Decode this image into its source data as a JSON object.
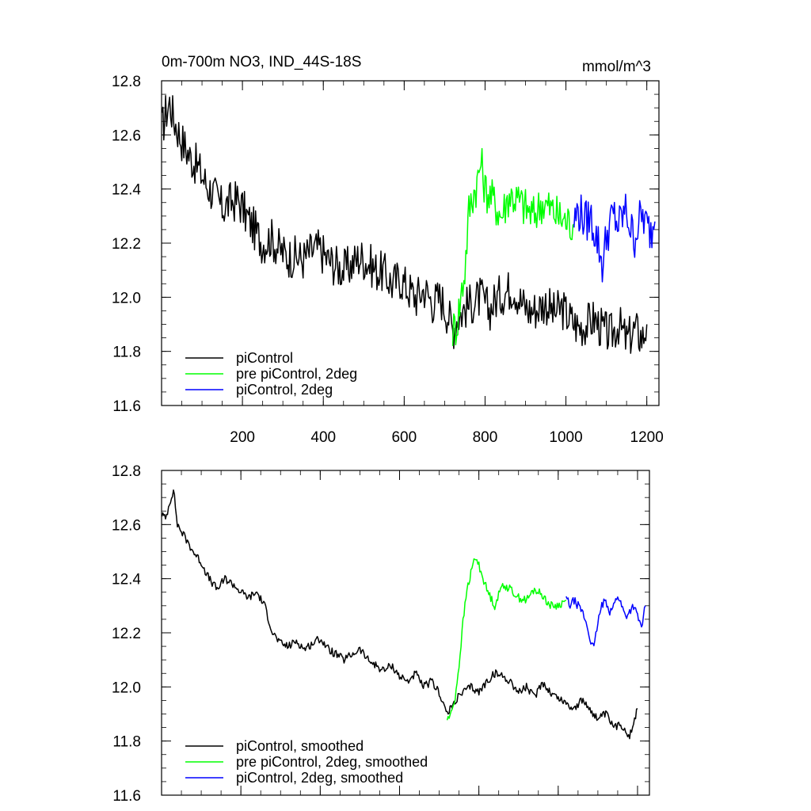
{
  "chart_data": [
    {
      "type": "line",
      "title": "0m-700m NO3, IND_44S-18S",
      "units": "mmol/m^3",
      "xlabel": "",
      "ylabel": "",
      "xlim": [
        0,
        1230
      ],
      "ylim": [
        11.6,
        12.8
      ],
      "x_ticks": [
        200,
        400,
        600,
        800,
        1000,
        1200
      ],
      "x_tick_labels": [
        "200",
        "400",
        "600",
        "800",
        "1000",
        "1200"
      ],
      "y_ticks": [
        11.6,
        11.8,
        12.0,
        12.2,
        12.4,
        12.6,
        12.8
      ],
      "y_tick_labels": [
        "11.6",
        "11.8",
        "12.0",
        "12.2",
        "12.4",
        "12.6",
        "12.8"
      ],
      "grid": false,
      "legend_position": "bottom-left",
      "series": [
        {
          "name": "piControl",
          "color": "#000000",
          "x": [
            1,
            10,
            20,
            30,
            50,
            70,
            90,
            110,
            130,
            150,
            170,
            190,
            210,
            230,
            250,
            270,
            290,
            310,
            330,
            350,
            370,
            390,
            410,
            430,
            450,
            470,
            490,
            510,
            530,
            550,
            570,
            590,
            610,
            630,
            650,
            670,
            690,
            710,
            720,
            730,
            750,
            770,
            790,
            810,
            830,
            850,
            870,
            890,
            910,
            930,
            950,
            970,
            990,
            1010,
            1030,
            1050,
            1070,
            1090,
            1110,
            1130,
            1150,
            1170,
            1190,
            1200
          ],
          "y": [
            12.62,
            12.68,
            12.72,
            12.66,
            12.58,
            12.52,
            12.48,
            12.42,
            12.38,
            12.33,
            12.35,
            12.36,
            12.3,
            12.25,
            12.2,
            12.22,
            12.18,
            12.15,
            12.15,
            12.14,
            12.17,
            12.18,
            12.14,
            12.12,
            12.1,
            12.12,
            12.15,
            12.13,
            12.1,
            12.09,
            12.05,
            12.07,
            12.03,
            12.0,
            12.03,
            11.98,
            12.0,
            11.93,
            11.88,
            11.92,
            11.96,
            11.98,
            12.0,
            11.95,
            12.0,
            12.02,
            12.04,
            11.98,
            11.95,
            11.96,
            11.98,
            11.94,
            11.96,
            11.92,
            11.89,
            11.9,
            11.92,
            11.88,
            11.86,
            11.9,
            11.84,
            11.88,
            11.85,
            11.9
          ]
        },
        {
          "name": "pre piControl, 2deg",
          "color": "#00ff00",
          "x": [
            720,
            730,
            740,
            750,
            760,
            770,
            780,
            790,
            800,
            820,
            840,
            860,
            880,
            900,
            920,
            940,
            960,
            980,
            1000,
            1020
          ],
          "y": [
            11.88,
            11.9,
            12.0,
            12.1,
            12.32,
            12.38,
            12.42,
            12.5,
            12.4,
            12.36,
            12.3,
            12.38,
            12.36,
            12.33,
            12.3,
            12.35,
            12.33,
            12.3,
            12.28,
            12.27
          ]
        },
        {
          "name": "piControl, 2deg",
          "color": "#0000ff",
          "x": [
            1020,
            1030,
            1040,
            1050,
            1060,
            1070,
            1080,
            1090,
            1100,
            1110,
            1120,
            1130,
            1140,
            1150,
            1160,
            1170,
            1180,
            1190,
            1200,
            1210,
            1220
          ],
          "y": [
            12.28,
            12.32,
            12.3,
            12.28,
            12.3,
            12.25,
            12.2,
            12.12,
            12.22,
            12.28,
            12.3,
            12.26,
            12.3,
            12.32,
            12.25,
            12.22,
            12.28,
            12.3,
            12.26,
            12.24,
            12.28
          ]
        }
      ]
    },
    {
      "type": "line",
      "title": "",
      "xlabel": "",
      "ylabel": "",
      "xlim": [
        0,
        1230
      ],
      "ylim": [
        11.6,
        12.8
      ],
      "x_ticks": [
        200,
        400,
        600,
        800,
        1000,
        1200
      ],
      "y_ticks": [
        11.6,
        11.8,
        12.0,
        12.2,
        12.4,
        12.6,
        12.8
      ],
      "y_tick_labels": [
        "11.6",
        "11.8",
        "12.0",
        "12.2",
        "12.4",
        "12.6",
        "12.8"
      ],
      "grid": false,
      "legend_position": "bottom-left",
      "series": [
        {
          "name": "piControl, smoothed",
          "color": "#000000",
          "x": [
            1,
            10,
            20,
            30,
            40,
            60,
            80,
            100,
            120,
            140,
            160,
            180,
            200,
            220,
            240,
            260,
            280,
            300,
            320,
            340,
            360,
            380,
            400,
            420,
            440,
            460,
            480,
            500,
            520,
            540,
            560,
            580,
            600,
            620,
            640,
            660,
            680,
            700,
            720,
            730,
            740,
            760,
            780,
            800,
            820,
            840,
            860,
            880,
            900,
            920,
            940,
            960,
            980,
            1000,
            1020,
            1040,
            1060,
            1080,
            1100,
            1120,
            1140,
            1160,
            1180,
            1200
          ],
          "y": [
            12.64,
            12.62,
            12.68,
            12.73,
            12.6,
            12.55,
            12.5,
            12.46,
            12.4,
            12.36,
            12.4,
            12.38,
            12.35,
            12.33,
            12.35,
            12.3,
            12.2,
            12.16,
            12.15,
            12.17,
            12.14,
            12.16,
            12.18,
            12.14,
            12.12,
            12.1,
            12.12,
            12.14,
            12.1,
            12.08,
            12.06,
            12.08,
            12.04,
            12.02,
            12.05,
            12.0,
            12.02,
            11.98,
            11.9,
            11.92,
            11.95,
            11.98,
            12.0,
            11.98,
            12.02,
            12.05,
            12.04,
            12.02,
            11.98,
            12.0,
            11.96,
            12.02,
            11.98,
            11.96,
            11.94,
            11.92,
            11.95,
            11.92,
            11.88,
            11.9,
            11.85,
            11.86,
            11.82,
            11.92
          ]
        },
        {
          "name": "pre piControl, 2deg, smoothed",
          "color": "#00ff00",
          "x": [
            720,
            730,
            740,
            750,
            760,
            770,
            780,
            790,
            800,
            820,
            840,
            860,
            880,
            900,
            920,
            940,
            960,
            980,
            1000,
            1020
          ],
          "y": [
            11.88,
            11.9,
            11.96,
            12.08,
            12.24,
            12.36,
            12.42,
            12.48,
            12.45,
            12.36,
            12.3,
            12.38,
            12.36,
            12.33,
            12.32,
            12.36,
            12.34,
            12.3,
            12.3,
            12.32
          ]
        },
        {
          "name": "piControl, 2deg, smoothed",
          "color": "#0000ff",
          "x": [
            1020,
            1030,
            1040,
            1050,
            1060,
            1070,
            1080,
            1090,
            1100,
            1110,
            1120,
            1130,
            1140,
            1150,
            1160,
            1170,
            1180,
            1190,
            1200,
            1210,
            1220
          ],
          "y": [
            12.33,
            12.3,
            12.32,
            12.3,
            12.28,
            12.24,
            12.18,
            12.14,
            12.24,
            12.3,
            12.32,
            12.28,
            12.3,
            12.34,
            12.3,
            12.26,
            12.28,
            12.3,
            12.26,
            12.22,
            12.3
          ]
        }
      ]
    }
  ]
}
